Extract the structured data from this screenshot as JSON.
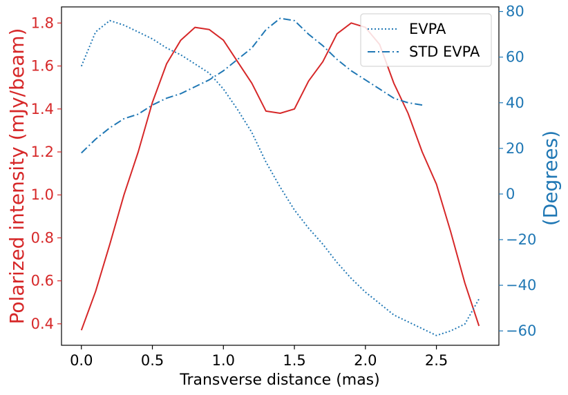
{
  "chart_data": {
    "type": "line",
    "xlabel": "Transverse distance (mas)",
    "ylabel_left": "Polarized intensity (mJy/beam)",
    "ylabel_right": "(Degrees)",
    "xlim": [
      -0.14,
      2.94
    ],
    "ylim_left": [
      0.3,
      1.875
    ],
    "ylim_right": [
      -66.3,
      82.0
    ],
    "x_ticks": [
      0.0,
      0.5,
      1.0,
      1.5,
      2.0,
      2.5
    ],
    "x_tick_labels": [
      "0.0",
      "0.5",
      "1.0",
      "1.5",
      "2.0",
      "2.5"
    ],
    "y_left_ticks": [
      0.4,
      0.6,
      0.8,
      1.0,
      1.2,
      1.4,
      1.6,
      1.8
    ],
    "y_left_tick_labels": [
      "0.4",
      "0.6",
      "0.8",
      "1.0",
      "1.2",
      "1.4",
      "1.6",
      "1.8"
    ],
    "y_right_ticks": [
      -60,
      -40,
      -20,
      0,
      20,
      40,
      60,
      80
    ],
    "y_right_tick_labels": [
      "−60",
      "−40",
      "−20",
      "0",
      "20",
      "40",
      "60",
      "80"
    ],
    "grid": false,
    "legend_position": "top-right",
    "colors": {
      "intensity": "#d62728",
      "evpa": "#1f77b4",
      "left_axis": "#d62728",
      "right_axis": "#1f77b4"
    },
    "series": [
      {
        "axis": "left",
        "style": "solid",
        "x": [
          0.0,
          0.1,
          0.2,
          0.3,
          0.4,
          0.5,
          0.6,
          0.7,
          0.8,
          0.9,
          1.0,
          1.1,
          1.2,
          1.3,
          1.4,
          1.5,
          1.6,
          1.7,
          1.8,
          1.9,
          2.0,
          2.1,
          2.2,
          2.3,
          2.4,
          2.5,
          2.6,
          2.7,
          2.8
        ],
        "values": [
          0.37,
          0.55,
          0.77,
          1.0,
          1.2,
          1.43,
          1.61,
          1.72,
          1.78,
          1.77,
          1.72,
          1.62,
          1.52,
          1.39,
          1.38,
          1.4,
          1.53,
          1.62,
          1.75,
          1.8,
          1.78,
          1.7,
          1.52,
          1.38,
          1.2,
          1.05,
          0.83,
          0.59,
          0.39
        ]
      },
      {
        "name": "EVPA",
        "axis": "right",
        "style": "dotted",
        "x": [
          0.0,
          0.1,
          0.2,
          0.3,
          0.4,
          0.5,
          0.6,
          0.7,
          0.8,
          0.9,
          1.0,
          1.1,
          1.2,
          1.3,
          1.4,
          1.5,
          1.6,
          1.7,
          1.8,
          1.9,
          2.0,
          2.1,
          2.2,
          2.3,
          2.4,
          2.5,
          2.6,
          2.7,
          2.8
        ],
        "values": [
          56,
          71,
          76,
          74,
          71,
          68,
          64,
          61,
          57,
          53,
          46,
          37,
          27,
          14,
          3,
          -7,
          -15,
          -22,
          -30,
          -37,
          -43,
          -48,
          -53,
          -56,
          -59,
          -62,
          -60,
          -57,
          -46
        ]
      },
      {
        "name": "STD EVPA",
        "axis": "right",
        "style": "dashdot",
        "x": [
          0.0,
          0.1,
          0.2,
          0.3,
          0.4,
          0.5,
          0.6,
          0.7,
          0.8,
          0.9,
          1.0,
          1.1,
          1.2,
          1.3,
          1.4,
          1.5,
          1.6,
          1.7,
          1.8,
          1.9,
          2.0,
          2.1,
          2.2,
          2.3,
          2.4
        ],
        "values": [
          18,
          24,
          29,
          33,
          35,
          39,
          42,
          44,
          47,
          50,
          54,
          59,
          64,
          72,
          77,
          76,
          70,
          65,
          59,
          54,
          50,
          46,
          42,
          40,
          39
        ]
      }
    ]
  }
}
